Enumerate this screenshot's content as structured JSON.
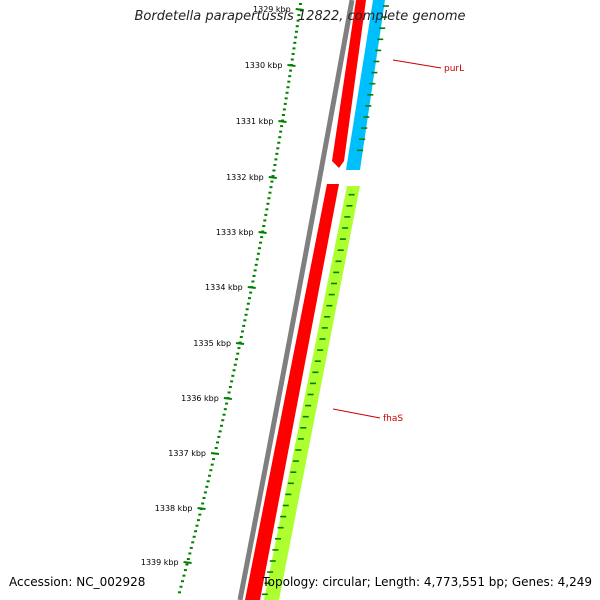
{
  "title": "Bordetella parapertussis 12822, complete genome",
  "accession_text": "Accession: NC_002928",
  "stats_text": "Topology: circular; Length: 4,773,551 bp; Genes: 4,249",
  "ruler": {
    "unit": "kbp",
    "tick_labels": [
      "1329 kbp",
      "1330 kbp",
      "1331 kbp",
      "1332 kbp",
      "1333 kbp",
      "1334 kbp",
      "1335 kbp",
      "1336 kbp",
      "1337 kbp",
      "1338 kbp",
      "1339 kbp"
    ]
  },
  "genes": [
    {
      "name": "purL",
      "color": "#cc0000"
    },
    {
      "name": "fhaS",
      "color": "#cc0000"
    }
  ],
  "colors": {
    "backbone": "#7f7f7f",
    "cds_track": "#ff0000",
    "forward_gene": "#00bfff",
    "reverse_gene": "#adff2f",
    "ruler": "#008000"
  }
}
